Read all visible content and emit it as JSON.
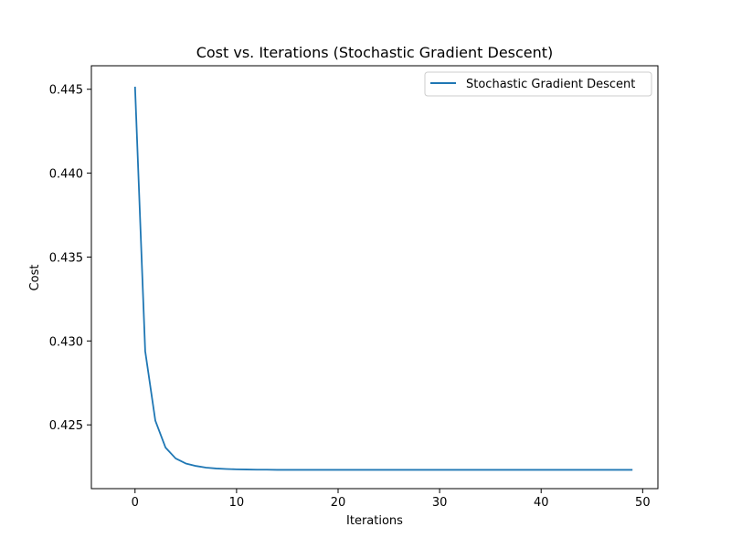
{
  "chart_data": {
    "type": "line",
    "title": "Cost vs. Iterations (Stochastic Gradient Descent)",
    "xlabel": "Iterations",
    "ylabel": "Cost",
    "xlim": [
      -4.3,
      51.5
    ],
    "ylim": [
      0.4212,
      0.4464
    ],
    "xticks": [
      0,
      10,
      20,
      30,
      40,
      50
    ],
    "yticks": [
      0.425,
      0.43,
      0.435,
      0.44,
      0.445
    ],
    "xtick_labels": [
      "0",
      "10",
      "20",
      "30",
      "40",
      "50"
    ],
    "ytick_labels": [
      "0.425",
      "0.430",
      "0.435",
      "0.440",
      "0.445"
    ],
    "grid": false,
    "legend_position": "top-right",
    "series": [
      {
        "name": "Stochastic Gradient Descent",
        "color": "#1f77b4",
        "x": [
          0,
          1,
          2,
          3,
          4,
          5,
          6,
          7,
          8,
          9,
          10,
          11,
          12,
          13,
          14,
          15,
          16,
          17,
          18,
          19,
          20,
          21,
          22,
          23,
          24,
          25,
          26,
          27,
          28,
          29,
          30,
          31,
          32,
          33,
          34,
          35,
          36,
          37,
          38,
          39,
          40,
          41,
          42,
          43,
          44,
          45,
          46,
          47,
          48,
          49
        ],
        "values": [
          0.44515,
          0.4294,
          0.42525,
          0.42365,
          0.423,
          0.4227,
          0.42255,
          0.42245,
          0.4224,
          0.42237,
          0.42235,
          0.42234,
          0.42233,
          0.42233,
          0.42232,
          0.42232,
          0.42232,
          0.42232,
          0.42232,
          0.42232,
          0.42232,
          0.42232,
          0.42232,
          0.42232,
          0.42232,
          0.42232,
          0.42232,
          0.42232,
          0.42232,
          0.42232,
          0.42232,
          0.42232,
          0.42232,
          0.42232,
          0.42232,
          0.42232,
          0.42232,
          0.42232,
          0.42232,
          0.42232,
          0.42232,
          0.42232,
          0.42232,
          0.42232,
          0.42232,
          0.42232,
          0.42232,
          0.42232,
          0.42232,
          0.42232
        ]
      }
    ]
  }
}
